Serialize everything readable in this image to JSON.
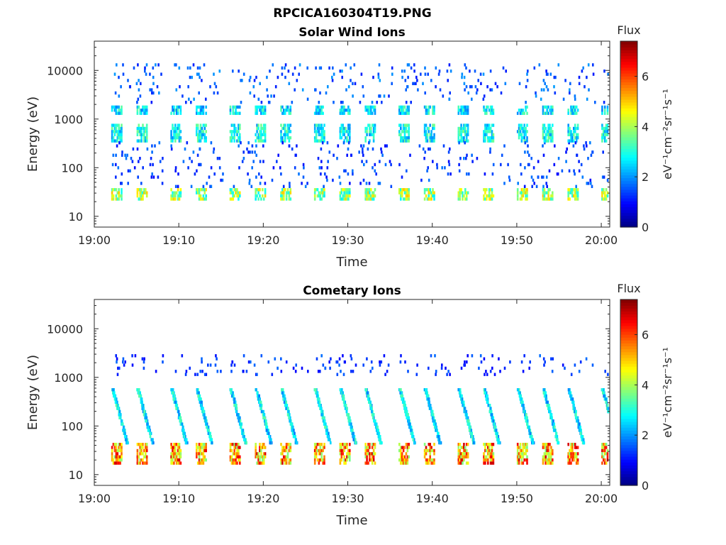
{
  "figure": {
    "title": "RPCICA160304T19.PNG"
  },
  "colors": {
    "axis": "#262626",
    "background": "#ffffff",
    "colormap": "jet"
  },
  "chart_data": [
    {
      "type": "heatmap",
      "title": "Solar Wind Ions",
      "xlabel": "Time",
      "ylabel": "Energy (eV)",
      "y_scale": "log",
      "ylim": [
        6,
        40000
      ],
      "xlim": [
        "19:00",
        "20:01"
      ],
      "x_ticks": [
        "19:00",
        "19:10",
        "19:20",
        "19:30",
        "19:40",
        "19:50",
        "20:00"
      ],
      "y_ticks": [
        "10",
        "100",
        "1000",
        "10000"
      ],
      "grid": false,
      "colorbar": {
        "label": "Flux",
        "unit": "eV⁻¹cm⁻²sr⁻¹s⁻¹",
        "min": 0,
        "max": 7.4,
        "ticks": [
          "0",
          "2",
          "4",
          "6"
        ]
      },
      "cycle_period_min": 3.4,
      "bands": [
        {
          "energy_eV": [
            20,
            38
          ],
          "flux": 4.4,
          "note": "strong narrow band"
        },
        {
          "energy_eV": [
            350,
            800
          ],
          "flux": 3.2
        },
        {
          "energy_eV": [
            1150,
            1900
          ],
          "flux": 3.0
        },
        {
          "energy_eV": [
            2000,
            14000
          ],
          "flux": 1.8,
          "note": "sparse pixels"
        },
        {
          "energy_eV": [
            40,
            350
          ],
          "flux": 1.6,
          "note": "sparse pixels"
        }
      ],
      "sweep_start_times": [
        "19:02",
        "19:05",
        "19:09",
        "19:12",
        "19:16",
        "19:19",
        "19:22",
        "19:26",
        "19:29",
        "19:32",
        "19:36",
        "19:39",
        "19:43",
        "19:46",
        "19:50",
        "19:53",
        "19:56",
        "20:00"
      ]
    },
    {
      "type": "heatmap",
      "title": "Cometary Ions",
      "xlabel": "Time",
      "ylabel": "Energy (eV)",
      "y_scale": "log",
      "ylim": [
        6,
        40000
      ],
      "xlim": [
        "19:00",
        "20:01"
      ],
      "x_ticks": [
        "19:00",
        "19:10",
        "19:20",
        "19:30",
        "19:40",
        "19:50",
        "20:00"
      ],
      "y_ticks": [
        "10",
        "100",
        "1000",
        "10000"
      ],
      "grid": false,
      "colorbar": {
        "label": "Flux",
        "unit": "eV⁻¹cm⁻²sr⁻¹s⁻¹",
        "min": 0,
        "max": 7.4,
        "ticks": [
          "0",
          "2",
          "4",
          "6"
        ]
      },
      "cycle_period_min": 3.4,
      "bands": [
        {
          "energy_eV": [
            15,
            45
          ],
          "flux": 6.0,
          "note": "dominant low-energy band"
        },
        {
          "energy_eV": [
            45,
            600
          ],
          "flux": 3.0,
          "note": "descending energy streaks per sweep"
        },
        {
          "energy_eV": [
            1100,
            3000
          ],
          "flux": 1.5,
          "note": "sparse pixels"
        }
      ],
      "sweep_start_times": [
        "19:02",
        "19:05",
        "19:09",
        "19:12",
        "19:16",
        "19:19",
        "19:22",
        "19:26",
        "19:29",
        "19:32",
        "19:36",
        "19:39",
        "19:43",
        "19:46",
        "19:50",
        "19:53",
        "19:56",
        "20:00"
      ]
    }
  ]
}
